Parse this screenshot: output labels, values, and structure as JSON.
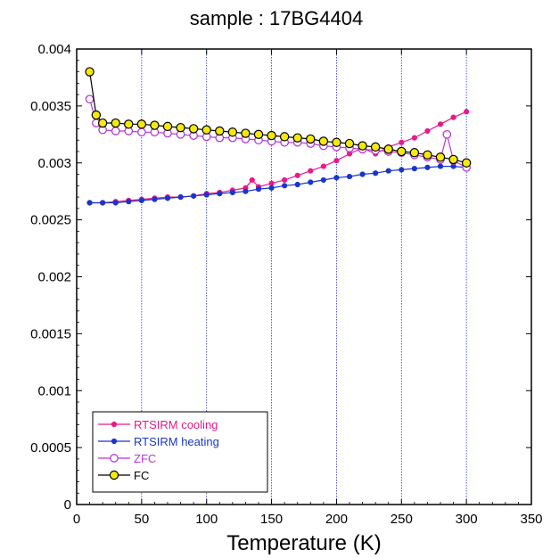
{
  "chart_data": {
    "type": "line",
    "title": "sample : 17BG4404",
    "xlabel": "Temperature (K)",
    "ylabel": "",
    "xlim": [
      0,
      350
    ],
    "ylim": [
      0,
      0.004
    ],
    "xticks": [
      0,
      50,
      100,
      150,
      200,
      250,
      300,
      350
    ],
    "yticks": [
      0,
      0.0005,
      0.001,
      0.0015,
      0.002,
      0.0025,
      0.003,
      0.0035,
      0.004
    ],
    "xtick_labels": [
      "0",
      "50",
      "100",
      "150",
      "200",
      "250",
      "300",
      "350"
    ],
    "ytick_labels": [
      "0",
      "0.0005",
      "0.001",
      "0.0015",
      "0.002",
      "0.0025",
      "0.003",
      "0.0035",
      "0.004"
    ],
    "grid": "vertical",
    "legend_position": "bottom-left",
    "series": [
      {
        "name": "RTSIRM cooling",
        "color": "#e8198b",
        "marker": "filled-small",
        "x": [
          10,
          20,
          30,
          40,
          50,
          60,
          70,
          80,
          90,
          100,
          110,
          120,
          130,
          135,
          140,
          150,
          160,
          170,
          180,
          190,
          200,
          210,
          220,
          230,
          240,
          250,
          260,
          270,
          280,
          290,
          300
        ],
        "y": [
          0.00265,
          0.00265,
          0.00266,
          0.00267,
          0.00268,
          0.00269,
          0.0027,
          0.0027,
          0.00271,
          0.00273,
          0.00274,
          0.00276,
          0.00278,
          0.00285,
          0.00279,
          0.00282,
          0.00285,
          0.00289,
          0.00293,
          0.00297,
          0.00302,
          0.00308,
          0.00313,
          0.00308,
          0.00314,
          0.00318,
          0.00322,
          0.00328,
          0.00334,
          0.0034,
          0.00345
        ]
      },
      {
        "name": "RTSIRM heating",
        "color": "#1a36c9",
        "marker": "filled-small",
        "x": [
          10,
          20,
          30,
          40,
          50,
          60,
          70,
          80,
          90,
          100,
          110,
          120,
          130,
          140,
          150,
          160,
          170,
          180,
          190,
          200,
          210,
          220,
          230,
          240,
          250,
          260,
          270,
          280,
          290,
          300
        ],
        "y": [
          0.00265,
          0.00265,
          0.00265,
          0.00266,
          0.00267,
          0.00268,
          0.00269,
          0.0027,
          0.00271,
          0.00272,
          0.00273,
          0.00274,
          0.00275,
          0.00277,
          0.00278,
          0.0028,
          0.00281,
          0.00283,
          0.00285,
          0.00287,
          0.00288,
          0.0029,
          0.00291,
          0.00293,
          0.00294,
          0.00295,
          0.00296,
          0.00297,
          0.00297,
          0.00296
        ]
      },
      {
        "name": "ZFC",
        "color": "#b538d6",
        "marker": "open-circle",
        "x": [
          10,
          15,
          20,
          30,
          40,
          50,
          60,
          70,
          80,
          90,
          100,
          110,
          120,
          130,
          140,
          150,
          160,
          170,
          180,
          190,
          200,
          210,
          220,
          230,
          240,
          250,
          260,
          270,
          280,
          285,
          290,
          300
        ],
        "y": [
          0.00356,
          0.00335,
          0.00329,
          0.00328,
          0.00328,
          0.00327,
          0.00327,
          0.00326,
          0.00325,
          0.00324,
          0.00323,
          0.00322,
          0.00322,
          0.00321,
          0.0032,
          0.00319,
          0.00318,
          0.00318,
          0.00317,
          0.00315,
          0.00314,
          0.00313,
          0.00312,
          0.00311,
          0.0031,
          0.00309,
          0.00307,
          0.00305,
          0.00303,
          0.00325,
          0.00302,
          0.00296
        ]
      },
      {
        "name": "FC",
        "color": "#000000",
        "fill": "#f4e90e",
        "marker": "open-circle-filled",
        "x": [
          10,
          15,
          20,
          30,
          40,
          50,
          60,
          70,
          80,
          90,
          100,
          110,
          120,
          130,
          140,
          150,
          160,
          170,
          180,
          190,
          200,
          210,
          220,
          230,
          240,
          250,
          260,
          270,
          280,
          290,
          300
        ],
        "y": [
          0.0038,
          0.00342,
          0.00335,
          0.00335,
          0.00334,
          0.00334,
          0.00333,
          0.00332,
          0.00331,
          0.0033,
          0.00329,
          0.00328,
          0.00327,
          0.00326,
          0.00325,
          0.00324,
          0.00323,
          0.00322,
          0.00321,
          0.00319,
          0.00318,
          0.00317,
          0.00315,
          0.00314,
          0.00312,
          0.0031,
          0.00309,
          0.00307,
          0.00305,
          0.00303,
          0.003
        ]
      }
    ]
  }
}
